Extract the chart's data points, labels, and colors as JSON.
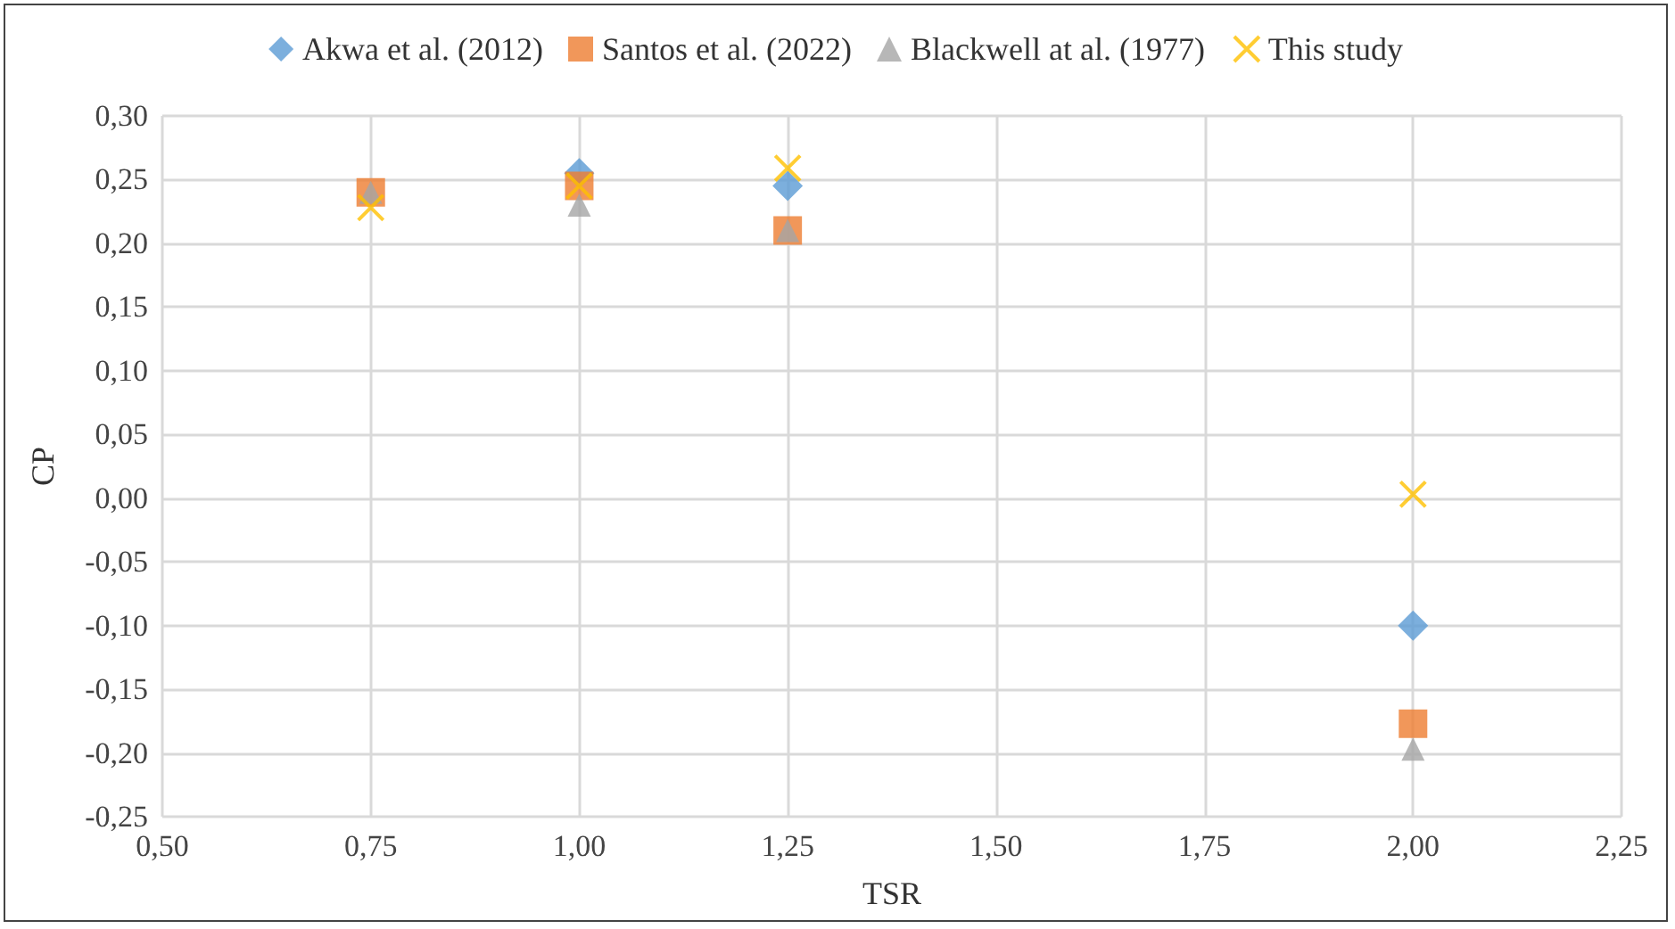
{
  "chart_data": {
    "type": "scatter",
    "xlabel": "TSR",
    "ylabel": "CP",
    "legend": "top",
    "grid": true,
    "xlim": [
      0.5,
      2.25
    ],
    "xticks": [
      {
        "value": 0.5,
        "label": "0,50"
      },
      {
        "value": 0.75,
        "label": "0,75"
      },
      {
        "value": 1,
        "label": "1,00"
      },
      {
        "value": 1.25,
        "label": "1,25"
      },
      {
        "value": 1.5,
        "label": "1,50"
      },
      {
        "value": 1.75,
        "label": "1,75"
      },
      {
        "value": 2,
        "label": "2,00"
      },
      {
        "value": 2.25,
        "label": "2,25"
      }
    ],
    "ylim": [
      -0.25,
      0.3
    ],
    "yticks": [
      {
        "value": -0.25,
        "label": "-0,25"
      },
      {
        "value": -0.2,
        "label": "-0,20"
      },
      {
        "value": -0.15,
        "label": "-0,15"
      },
      {
        "value": -0.1,
        "label": "-0,10"
      },
      {
        "value": -0.05,
        "label": "-0,05"
      },
      {
        "value": 0,
        "label": "0,00"
      },
      {
        "value": 0.05,
        "label": "0,05"
      },
      {
        "value": 0.1,
        "label": "0,10"
      },
      {
        "value": 0.15,
        "label": "0,15"
      },
      {
        "value": 0.2,
        "label": "0,20"
      },
      {
        "value": 0.25,
        "label": "0,25"
      },
      {
        "value": 0.3,
        "label": "0,30"
      }
    ],
    "x": [
      0.75,
      1,
      1.25,
      2
    ],
    "series": [
      {
        "name": "Akwa et al. (2012)",
        "color": "#5b9bd5",
        "marker": "diamond",
        "values": [
          null,
          0.255,
          0.245,
          -0.1
        ]
      },
      {
        "name": "Santos et al. (2022)",
        "color": "#ed7d31",
        "marker": "square",
        "values": [
          0.24,
          0.245,
          0.21,
          -0.177
        ]
      },
      {
        "name": "Blackwell at al. (1977)",
        "color": "#a5a5a5",
        "marker": "triangle",
        "values": [
          0.24,
          0.23,
          0.21,
          -0.197
        ]
      },
      {
        "name": "This study",
        "color": "#ffc000",
        "marker": "cross",
        "values": [
          0.228,
          0.245,
          0.259,
          0.003
        ]
      }
    ]
  }
}
